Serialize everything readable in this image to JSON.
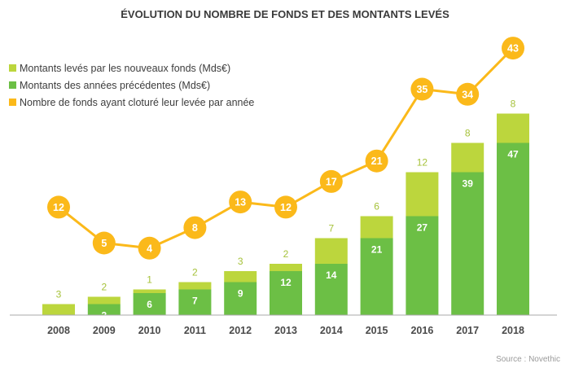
{
  "chart_data": {
    "type": "bar",
    "title": "ÉVOLUTION DU NOMBRE DE FONDS ET DES MONTANTS LEVÉS",
    "categories": [
      "2008",
      "2009",
      "2010",
      "2011",
      "2012",
      "2013",
      "2014",
      "2015",
      "2016",
      "2017",
      "2018"
    ],
    "series": [
      {
        "name": "Montants levés par les nouveaux fonds (Mds€)",
        "type": "bar",
        "stacked": true,
        "values": [
          3,
          2,
          1,
          2,
          3,
          2,
          7,
          6,
          12,
          8,
          8
        ]
      },
      {
        "name": "Montants des années précédentes (Mds€)",
        "type": "bar",
        "stacked": true,
        "values": [
          0,
          3,
          6,
          7,
          9,
          12,
          14,
          21,
          27,
          39,
          47
        ]
      },
      {
        "name": "Nombre de fonds ayant cloturé leur levée par année",
        "type": "line",
        "values": [
          12,
          5,
          4,
          8,
          13,
          12,
          17,
          21,
          35,
          34,
          43
        ]
      }
    ],
    "legend_position": "top-left",
    "grid": false,
    "source": "Source : Novethic"
  },
  "colors": {
    "new_funds": "#bcd63d",
    "previous_years": "#6cbf45",
    "fund_count": "#fbb91a",
    "axis": "#aaaaaa",
    "title": "#3a3a3a"
  }
}
